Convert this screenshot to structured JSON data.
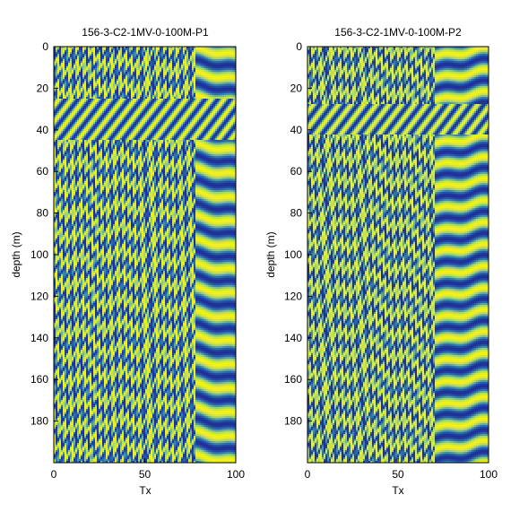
{
  "chart_data": [
    {
      "type": "heatmap",
      "title": "156-3-C2-1MV-0-100M-P1",
      "xlabel": "Tx",
      "ylabel": "depth (m)",
      "xlim": [
        0,
        100
      ],
      "ylim": [
        0,
        200
      ],
      "y_reversed": true,
      "xticks": [
        0,
        50,
        100
      ],
      "yticks": [
        0,
        20,
        40,
        60,
        80,
        100,
        120,
        140,
        160,
        180
      ],
      "grid": false,
      "colormap": [
        "#1f2f98",
        "#2f7fb0",
        "#9bd07a",
        "#f2f21a"
      ],
      "band_period_m": 11.5,
      "disturbed_zone_depth_m": [
        25,
        45
      ],
      "quiet_tx_range": [
        78,
        100
      ]
    },
    {
      "type": "heatmap",
      "title": "156-3-C2-1MV-0-100M-P2",
      "xlabel": "Tx",
      "ylabel": "depth (m)",
      "xlim": [
        0,
        100
      ],
      "ylim": [
        0,
        200
      ],
      "y_reversed": true,
      "xticks": [
        0,
        50,
        100
      ],
      "yticks": [
        0,
        20,
        40,
        60,
        80,
        100,
        120,
        140,
        160,
        180
      ],
      "grid": false,
      "colormap": [
        "#1f2f98",
        "#2f7fb0",
        "#9bd07a",
        "#f2f21a"
      ],
      "band_period_m": 10.5,
      "disturbed_zone_depth_m": [
        28,
        42
      ],
      "quiet_tx_range": [
        70,
        100
      ]
    }
  ]
}
